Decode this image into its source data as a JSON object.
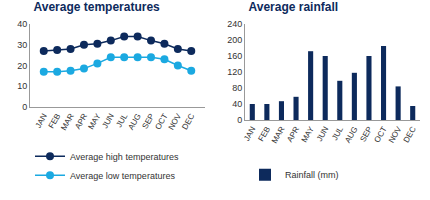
{
  "chart_data": [
    {
      "type": "line",
      "title": "Average temperatures",
      "categories": [
        "JAN",
        "FEB",
        "MAR",
        "APR",
        "MAY",
        "JUN",
        "JUL",
        "AUG",
        "SEP",
        "OCT",
        "NOV",
        "DEC"
      ],
      "series": [
        {
          "name": "Average high temperatures",
          "color": "#0d2a5c",
          "values": [
            27,
            27.5,
            28,
            30,
            30.5,
            32,
            34,
            34,
            32,
            30.5,
            28,
            27
          ]
        },
        {
          "name": "Average low temperatures",
          "color": "#1ba9e1",
          "values": [
            17,
            17,
            17.5,
            18.5,
            21,
            24,
            24,
            24,
            24,
            23,
            20,
            17.5
          ]
        }
      ],
      "ylim": [
        0,
        40
      ],
      "yticks": [
        0,
        10,
        20,
        30,
        40
      ],
      "grid": false,
      "marker": "circle",
      "legend": "bottom"
    },
    {
      "type": "bar",
      "title": "Average rainfall",
      "categories": [
        "JAN",
        "FEB",
        "MAR",
        "APR",
        "MAY",
        "JUN",
        "JUL",
        "AUG",
        "SEP",
        "OCT",
        "NOV",
        "DEC"
      ],
      "series": [
        {
          "name": "Rainfall (mm)",
          "color": "#0d2a5c",
          "values": [
            40,
            40,
            47,
            58,
            172,
            160,
            98,
            118,
            160,
            185,
            84,
            35
          ]
        }
      ],
      "ylim": [
        0,
        240
      ],
      "yticks": [
        0,
        40,
        80,
        120,
        160,
        200,
        240
      ],
      "grid": false,
      "legend": "bottom"
    }
  ]
}
